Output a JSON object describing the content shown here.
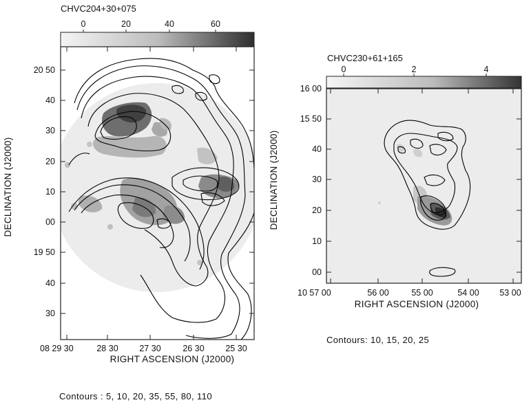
{
  "chart_data": [
    {
      "type": "heatmap",
      "title": "CHVC204+30+075",
      "colorbar_ticks": [
        "0",
        "20",
        "40",
        "60"
      ],
      "ylabel": "DECLINATION (J2000)",
      "xlabel": "RIGHT ASCENSION (J2000)",
      "y_ticks": [
        "20 50",
        "40",
        "30",
        "20",
        "10",
        "00",
        "19 50",
        "40",
        "30"
      ],
      "x_ticks": [
        "08 29 30",
        "28 30",
        "27 30",
        "26 30",
        "25 30"
      ],
      "contours": [
        5,
        10,
        20,
        35,
        55,
        80,
        110
      ],
      "caption": "Contours : 5, 10, 20, 35, 55, 80, 110"
    },
    {
      "type": "heatmap",
      "title": "CHVC230+61+165",
      "colorbar_ticks": [
        "0",
        "2",
        "4"
      ],
      "ylabel": "DECLINATION (J2000)",
      "xlabel": "RIGHT ASCENSION (J2000)",
      "y_ticks": [
        "16 00",
        "15 50",
        "40",
        "30",
        "20",
        "10",
        "00"
      ],
      "x_ticks": [
        "10 57 00",
        "56 00",
        "55 00",
        "54 00",
        "53 00"
      ],
      "contours": [
        10,
        15,
        20,
        25
      ],
      "caption": "Contours: 10, 15, 20, 25"
    }
  ]
}
